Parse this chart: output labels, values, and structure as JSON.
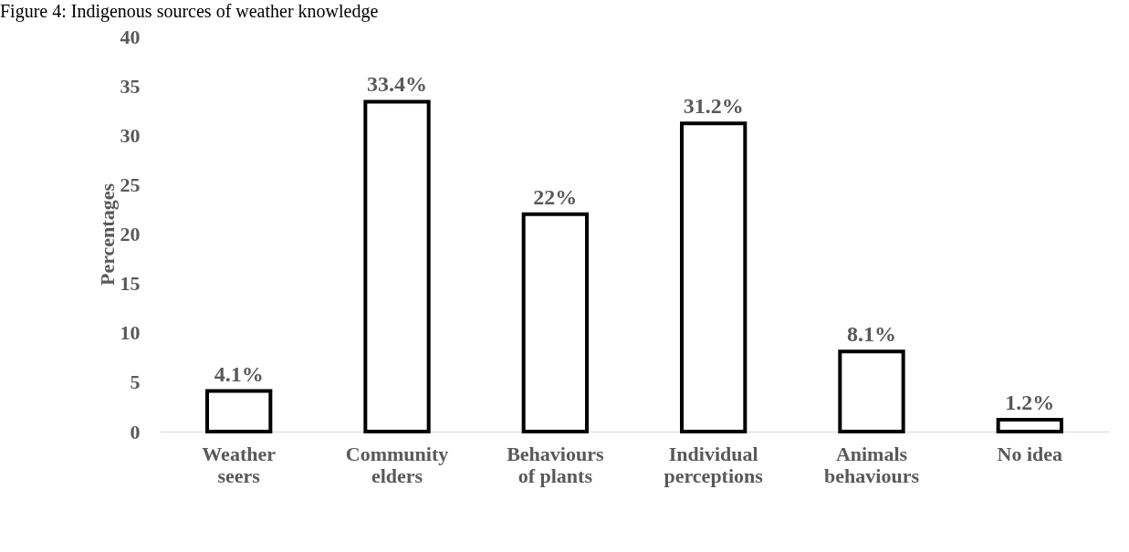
{
  "chart_data": {
    "type": "bar",
    "title": "Figure 4: Indigenous sources of weather knowledge",
    "ylabel": "Percentages",
    "categories": [
      "Weather seers",
      "Community elders",
      "Behaviours of plants",
      "Individual perceptions",
      "Animals behaviours",
      "No idea"
    ],
    "values": [
      4.1,
      33.4,
      22,
      31.2,
      8.1,
      1.2
    ],
    "value_labels": [
      "4.1%",
      "33.4%",
      "22%",
      "31.2%",
      "8.1%",
      "1.2%"
    ],
    "color": "#000000",
    "ylim": [
      0,
      40
    ],
    "yticks": [
      0,
      5,
      10,
      15,
      20,
      25,
      30,
      35,
      40
    ],
    "grid": false
  }
}
